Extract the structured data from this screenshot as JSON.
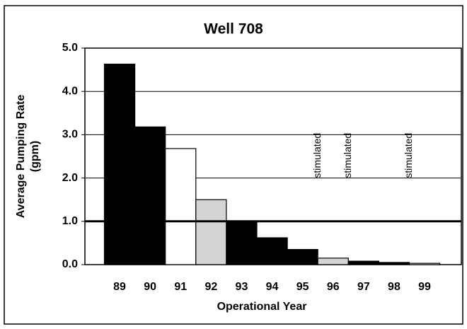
{
  "chart_data": {
    "type": "bar",
    "title": "Well 708",
    "categories": [
      "89",
      "90",
      "91",
      "92",
      "93",
      "94",
      "95",
      "96",
      "97",
      "98",
      "99"
    ],
    "values": [
      4.63,
      3.18,
      2.68,
      1.5,
      1.0,
      0.62,
      0.35,
      0.15,
      0.08,
      0.05,
      0.03
    ],
    "colors": [
      "#000000",
      "#000000",
      "#ffffff",
      "#d4d4d4",
      "#000000",
      "#000000",
      "#000000",
      "#d4d4d4",
      "#000000",
      "#000000",
      "#ffffff"
    ],
    "ylim": [
      0,
      5
    ],
    "yticks": [
      {
        "value": 0,
        "label": "0.0"
      },
      {
        "value": 1,
        "label": "1.0"
      },
      {
        "value": 2,
        "label": "2.0"
      },
      {
        "value": 3,
        "label": "3.0"
      },
      {
        "value": 4,
        "label": "4.0"
      },
      {
        "value": 5,
        "label": "5.0"
      }
    ],
    "grid": true,
    "reference_line": 1,
    "xlabel": "Operational Year",
    "ylabel": [
      "Average Pumping Rate",
      "(gpm)"
    ],
    "annotations": [
      {
        "text": "stimulated",
        "category": 7
      },
      {
        "text": "stimulated",
        "category": 8
      },
      {
        "text": "stimulated",
        "category": 10
      }
    ]
  }
}
